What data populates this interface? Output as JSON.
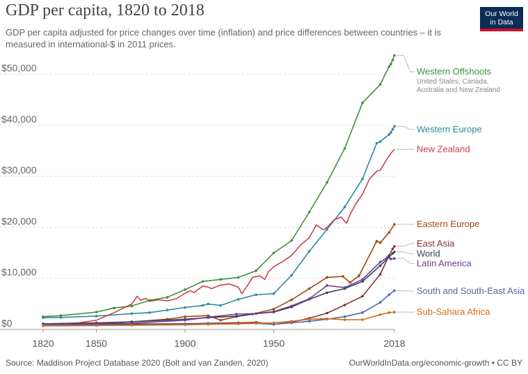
{
  "header": {
    "title": "GDP per capita, 1820 to 2018",
    "subtitle": "GDP per capita adjusted for price changes over time (inflation) and price differences between countries – it is measured in international-$ in 2011 prices."
  },
  "logo": {
    "line1": "Our World",
    "line2": "in Data",
    "bg": "#0b2c57",
    "accent": "#c8102e"
  },
  "footer": {
    "source": "Source: Maddison Project Database 2020 (Bolt and van Zanden, 2020)",
    "url": "OurWorldInData.org/economic-growth • CC BY"
  },
  "chart_data": {
    "type": "line",
    "title": "GDP per capita, 1820 to 2018",
    "xlim": [
      1820,
      2018
    ],
    "ylim": [
      0,
      55000
    ],
    "grid": "horizontal",
    "x_ticks": [
      {
        "value": 1820,
        "label": "1820"
      },
      {
        "value": 1850,
        "label": "1850"
      },
      {
        "value": 1900,
        "label": "1900"
      },
      {
        "value": 1950,
        "label": "1950"
      },
      {
        "value": 2018,
        "label": "2018"
      }
    ],
    "y_ticks": [
      {
        "value": 0,
        "label": "$0"
      },
      {
        "value": 10000,
        "label": "$10,000"
      },
      {
        "value": 20000,
        "label": "$20,000"
      },
      {
        "value": 30000,
        "label": "$30,000"
      },
      {
        "value": 40000,
        "label": "$40,000"
      },
      {
        "value": 50000,
        "label": "$50,000"
      }
    ],
    "series": [
      {
        "name": "Western Offshoots",
        "note": "United States, Canada, Australia and New Zealand",
        "color": "#3f8f3f",
        "points": [
          [
            1820,
            2500
          ],
          [
            1830,
            2700
          ],
          [
            1850,
            3400
          ],
          [
            1860,
            4200
          ],
          [
            1870,
            4600
          ],
          [
            1880,
            5700
          ],
          [
            1890,
            6300
          ],
          [
            1900,
            7800
          ],
          [
            1910,
            9400
          ],
          [
            1920,
            9800
          ],
          [
            1930,
            10200
          ],
          [
            1940,
            11500
          ],
          [
            1950,
            15000
          ],
          [
            1960,
            17400
          ],
          [
            1970,
            23000
          ],
          [
            1980,
            28800
          ],
          [
            1990,
            35500
          ],
          [
            2000,
            44400
          ],
          [
            2010,
            48000
          ],
          [
            2015,
            51500
          ],
          [
            2016,
            52000
          ],
          [
            2017,
            52800
          ],
          [
            2018,
            53700
          ]
        ]
      },
      {
        "name": "Western Europe",
        "color": "#2c8a9c",
        "points": [
          [
            1820,
            2300
          ],
          [
            1830,
            2350
          ],
          [
            1850,
            2600
          ],
          [
            1870,
            3100
          ],
          [
            1880,
            3300
          ],
          [
            1890,
            3800
          ],
          [
            1900,
            4300
          ],
          [
            1910,
            4700
          ],
          [
            1913,
            5000
          ],
          [
            1920,
            4700
          ],
          [
            1930,
            5900
          ],
          [
            1940,
            6800
          ],
          [
            1950,
            7000
          ],
          [
            1960,
            10600
          ],
          [
            1970,
            15300
          ],
          [
            1980,
            19600
          ],
          [
            1990,
            24000
          ],
          [
            2000,
            29500
          ],
          [
            2008,
            36500
          ],
          [
            2010,
            36800
          ],
          [
            2015,
            38200
          ],
          [
            2016,
            38600
          ],
          [
            2017,
            39200
          ],
          [
            2018,
            39800
          ]
        ]
      },
      {
        "name": "New Zealand",
        "color": "#c9434a",
        "points": [
          [
            1820,
            1000
          ],
          [
            1840,
            1300
          ],
          [
            1850,
            1800
          ],
          [
            1860,
            3300
          ],
          [
            1870,
            5000
          ],
          [
            1873,
            6500
          ],
          [
            1875,
            5700
          ],
          [
            1878,
            6100
          ],
          [
            1880,
            5500
          ],
          [
            1885,
            5800
          ],
          [
            1890,
            5600
          ],
          [
            1895,
            6000
          ],
          [
            1900,
            7100
          ],
          [
            1903,
            7600
          ],
          [
            1905,
            7200
          ],
          [
            1910,
            8500
          ],
          [
            1913,
            8300
          ],
          [
            1915,
            8000
          ],
          [
            1920,
            8700
          ],
          [
            1925,
            8900
          ],
          [
            1930,
            8300
          ],
          [
            1932,
            7000
          ],
          [
            1935,
            8500
          ],
          [
            1938,
            10200
          ],
          [
            1942,
            10500
          ],
          [
            1945,
            9800
          ],
          [
            1947,
            11300
          ],
          [
            1950,
            12300
          ],
          [
            1955,
            13300
          ],
          [
            1960,
            14500
          ],
          [
            1965,
            16500
          ],
          [
            1970,
            18000
          ],
          [
            1974,
            20500
          ],
          [
            1978,
            19500
          ],
          [
            1980,
            20000
          ],
          [
            1984,
            21500
          ],
          [
            1988,
            22000
          ],
          [
            1991,
            20800
          ],
          [
            1993,
            22500
          ],
          [
            1996,
            24500
          ],
          [
            2000,
            26500
          ],
          [
            2004,
            29500
          ],
          [
            2008,
            31000
          ],
          [
            2010,
            31200
          ],
          [
            2014,
            33500
          ],
          [
            2016,
            34500
          ],
          [
            2018,
            35300
          ]
        ]
      },
      {
        "name": "Eastern Europe",
        "color": "#a2460e",
        "points": [
          [
            1820,
            1100
          ],
          [
            1850,
            1300
          ],
          [
            1870,
            1500
          ],
          [
            1890,
            2000
          ],
          [
            1900,
            2500
          ],
          [
            1913,
            2700
          ],
          [
            1920,
            1800
          ],
          [
            1929,
            2500
          ],
          [
            1938,
            3000
          ],
          [
            1950,
            4000
          ],
          [
            1960,
            5800
          ],
          [
            1970,
            8000
          ],
          [
            1980,
            10200
          ],
          [
            1989,
            10400
          ],
          [
            1993,
            9200
          ],
          [
            1998,
            10500
          ],
          [
            2008,
            17300
          ],
          [
            2010,
            17000
          ],
          [
            2015,
            19000
          ],
          [
            2018,
            20600
          ]
        ]
      },
      {
        "name": "East Asia",
        "color": "#883039",
        "points": [
          [
            1820,
            1100
          ],
          [
            1850,
            1000
          ],
          [
            1870,
            1050
          ],
          [
            1900,
            1100
          ],
          [
            1913,
            1200
          ],
          [
            1930,
            1300
          ],
          [
            1940,
            1400
          ],
          [
            1950,
            1000
          ],
          [
            1960,
            1400
          ],
          [
            1970,
            2200
          ],
          [
            1980,
            3200
          ],
          [
            1990,
            4800
          ],
          [
            2000,
            6500
          ],
          [
            2010,
            10800
          ],
          [
            2015,
            14500
          ],
          [
            2017,
            15800
          ],
          [
            2018,
            16300
          ]
        ]
      },
      {
        "name": "World",
        "color": "#38425d",
        "points": [
          [
            1820,
            1100
          ],
          [
            1850,
            1200
          ],
          [
            1870,
            1500
          ],
          [
            1900,
            2000
          ],
          [
            1913,
            2300
          ],
          [
            1929,
            2600
          ],
          [
            1940,
            3100
          ],
          [
            1950,
            3400
          ],
          [
            1960,
            4400
          ],
          [
            1970,
            5900
          ],
          [
            1980,
            7200
          ],
          [
            1990,
            8000
          ],
          [
            2000,
            9400
          ],
          [
            2010,
            12500
          ],
          [
            2015,
            14200
          ],
          [
            2017,
            14900
          ],
          [
            2018,
            15200
          ]
        ]
      },
      {
        "name": "Latin America",
        "color": "#6d3e91",
        "points": [
          [
            1820,
            1000
          ],
          [
            1850,
            1100
          ],
          [
            1870,
            1200
          ],
          [
            1900,
            1800
          ],
          [
            1913,
            2400
          ],
          [
            1929,
            3000
          ],
          [
            1940,
            3100
          ],
          [
            1950,
            3500
          ],
          [
            1960,
            4600
          ],
          [
            1970,
            6000
          ],
          [
            1980,
            8600
          ],
          [
            1990,
            8200
          ],
          [
            2000,
            9800
          ],
          [
            2010,
            13200
          ],
          [
            2014,
            14100
          ],
          [
            2016,
            13800
          ],
          [
            2018,
            13900
          ]
        ]
      },
      {
        "name": "South and South-East Asia",
        "color": "#4c6aa8",
        "points": [
          [
            1820,
            900
          ],
          [
            1850,
            900
          ],
          [
            1870,
            900
          ],
          [
            1900,
            1000
          ],
          [
            1913,
            1100
          ],
          [
            1930,
            1100
          ],
          [
            1940,
            1200
          ],
          [
            1950,
            1000
          ],
          [
            1960,
            1300
          ],
          [
            1970,
            1600
          ],
          [
            1980,
            2000
          ],
          [
            1990,
            2500
          ],
          [
            2000,
            3300
          ],
          [
            2010,
            5300
          ],
          [
            2015,
            6800
          ],
          [
            2018,
            7600
          ]
        ]
      },
      {
        "name": "Sub-Sahara Africa",
        "color": "#d26e18",
        "points": [
          [
            1820,
            700
          ],
          [
            1850,
            750
          ],
          [
            1870,
            800
          ],
          [
            1900,
            900
          ],
          [
            1913,
            1000
          ],
          [
            1930,
            1100
          ],
          [
            1940,
            1200
          ],
          [
            1950,
            1300
          ],
          [
            1960,
            1600
          ],
          [
            1970,
            2000
          ],
          [
            1980,
            2100
          ],
          [
            1990,
            1900
          ],
          [
            2000,
            1900
          ],
          [
            2010,
            2900
          ],
          [
            2015,
            3300
          ],
          [
            2018,
            3400
          ]
        ]
      }
    ],
    "labels": [
      {
        "series": 0,
        "label_y": 50500
      },
      {
        "series": 1,
        "label_y": 39200
      },
      {
        "series": 2,
        "label_y": 35300
      },
      {
        "series": 3,
        "label_y": 20600
      },
      {
        "series": 4,
        "label_y": 16800
      },
      {
        "series": 5,
        "label_y": 14800
      },
      {
        "series": 6,
        "label_y": 12900
      },
      {
        "series": 7,
        "label_y": 7500
      },
      {
        "series": 8,
        "label_y": 3400
      }
    ]
  }
}
